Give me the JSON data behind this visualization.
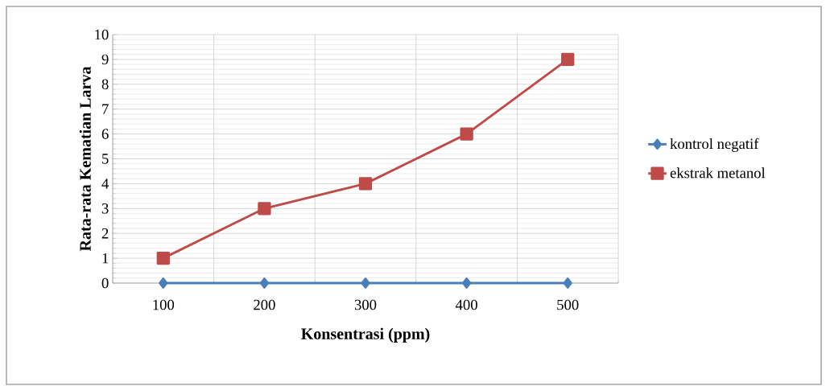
{
  "chart_data": {
    "type": "line",
    "xlabel": "Konsentrasi (ppm)",
    "ylabel": "Rata-rata Kematian Larva",
    "categories": [
      "100",
      "200",
      "300",
      "400",
      "500"
    ],
    "series": [
      {
        "name": "kontrol negatif",
        "color": "#4a7ebb",
        "marker": "diamond",
        "values": [
          0,
          0,
          0,
          0,
          0
        ]
      },
      {
        "name": "ekstrak metanol",
        "color": "#be4b48",
        "marker": "square",
        "values": [
          1,
          3,
          4,
          6,
          9
        ]
      }
    ],
    "ylim": [
      0,
      10
    ],
    "yticks": [
      0,
      1,
      2,
      3,
      4,
      5,
      6,
      7,
      8,
      9,
      10
    ],
    "grid": true,
    "legend": "right",
    "line_style": "solid"
  }
}
